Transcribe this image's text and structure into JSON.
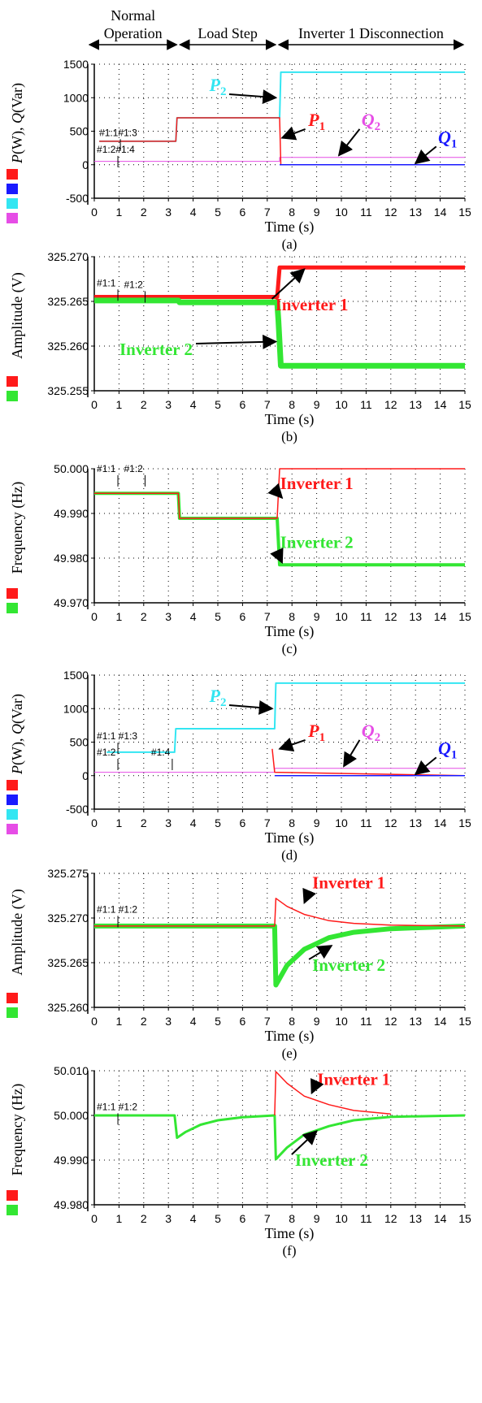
{
  "header": {
    "phases": [
      {
        "label": "Normal\nOperation",
        "t0": 0,
        "t1": 3.4
      },
      {
        "label": "Load Step",
        "t0": 3.4,
        "t1": 7.4
      },
      {
        "label": "Inverter 1 Disconnection",
        "t0": 7.4,
        "t1": 15
      }
    ]
  },
  "colors": {
    "red": "#ff1a1a",
    "blue": "#1a1aff",
    "cyan": "#33e6f2",
    "magenta": "#e64de6",
    "green": "#33e633",
    "annot_blue": "#1a1aff"
  },
  "chart_data": [
    {
      "id": "a",
      "caption": "(a)",
      "type": "line",
      "ylabel": "P(W), Q(Var)",
      "xlabel": "Time (s)",
      "xlim": [
        0,
        15
      ],
      "ylim": [
        -500,
        1500
      ],
      "xticks": [
        "0",
        "1",
        "2",
        "3",
        "4",
        "5",
        "6",
        "7",
        "8",
        "9",
        "10",
        "11",
        "12",
        "13",
        "14",
        "15"
      ],
      "yticks": [
        "1500",
        "1000",
        "500",
        "0",
        "-500"
      ],
      "legend_swatches": [
        "red",
        "blue",
        "cyan",
        "magenta"
      ],
      "markers": [
        {
          "text": "#1:1#1:3",
          "t": 0.2,
          "y": 430
        },
        {
          "text": "#1:2#1:4",
          "t": 0.1,
          "y": 180
        }
      ],
      "series": [
        {
          "color": "cyan",
          "points": [
            [
              0.2,
              350
            ],
            [
              3.3,
              350
            ],
            [
              3.35,
              700
            ],
            [
              7.5,
              700
            ],
            [
              7.55,
              1380
            ],
            [
              15,
              1380
            ]
          ],
          "width": 2
        },
        {
          "color": "magenta",
          "points": [
            [
              0,
              50
            ],
            [
              7.5,
              50
            ],
            [
              7.5,
              110
            ],
            [
              15,
              110
            ]
          ],
          "width": 1
        },
        {
          "color": "red",
          "points": [
            [
              0.2,
              350
            ],
            [
              3.3,
              350
            ],
            [
              3.35,
              700
            ],
            [
              7.5,
              700
            ],
            [
              7.55,
              0
            ],
            [
              15,
              0
            ]
          ],
          "width": 1.5
        },
        {
          "color": "blue",
          "points": [
            [
              7.5,
              0
            ],
            [
              15,
              0
            ]
          ],
          "width": 1.5
        }
      ],
      "annotations": [
        {
          "text": "P",
          "sub": "2",
          "color": "cyan",
          "tx": 5.0,
          "ty": 1100,
          "ax": 7.35,
          "ay": 1000
        },
        {
          "text": "P",
          "sub": "1",
          "color": "red",
          "tx": 9.0,
          "ty": 580,
          "ax": 7.6,
          "ay": 400
        },
        {
          "text": "Q",
          "sub": "2",
          "color": "magenta",
          "tx": 11.2,
          "ty": 580,
          "ax": 9.9,
          "ay": 140
        },
        {
          "text": "Q",
          "sub": "1",
          "color": "annot_blue",
          "tx": 14.3,
          "ty": 320,
          "ax": 13.0,
          "ay": 20
        }
      ]
    },
    {
      "id": "b",
      "caption": "(b)",
      "type": "line",
      "ylabel": "Amplitude (V)",
      "xlabel": "Time (s)",
      "xlim": [
        0,
        15
      ],
      "ylim": [
        325.255,
        325.27
      ],
      "xticks": [
        "0",
        "1",
        "2",
        "3",
        "4",
        "5",
        "6",
        "7",
        "8",
        "9",
        "10",
        "11",
        "12",
        "13",
        "14",
        "15"
      ],
      "yticks": [
        "325.270",
        "325.265",
        "325.260",
        "325.255"
      ],
      "legend_swatches": [
        "red",
        "green"
      ],
      "markers": [
        {
          "text": "#1:1",
          "t": 0.1,
          "y": 325.2667
        },
        {
          "text": "#1:2",
          "t": 1.2,
          "y": 325.2665
        }
      ],
      "series": [
        {
          "color": "red",
          "points": [
            [
              0,
              325.2655
            ],
            [
              7.4,
              325.2655
            ],
            [
              7.5,
              325.2688
            ],
            [
              15,
              325.2688
            ]
          ],
          "width": 5
        },
        {
          "color": "green",
          "points": [
            [
              0,
              325.2651
            ],
            [
              3.4,
              325.2651
            ],
            [
              3.45,
              325.2649
            ],
            [
              7.4,
              325.2649
            ],
            [
              7.45,
              325.2629
            ],
            [
              7.55,
              325.2578
            ],
            [
              15,
              325.2578
            ]
          ],
          "width": 7
        }
      ],
      "annotations": [
        {
          "text": "Inverter 1",
          "color": "red",
          "tx": 8.8,
          "ty": 325.264,
          "ax": 8.5,
          "ay": 325.2686
        },
        {
          "text": "Inverter 2",
          "color": "green",
          "tx": 2.5,
          "ty": 325.259,
          "ax": 7.35,
          "ay": 325.2605
        }
      ]
    },
    {
      "id": "c",
      "caption": "(c)",
      "type": "line",
      "ylabel": "Frequency (Hz)",
      "xlabel": "Time (s)",
      "xlim": [
        0,
        15
      ],
      "ylim": [
        49.97,
        50.0
      ],
      "xticks": [
        "0",
        "1",
        "2",
        "3",
        "4",
        "5",
        "6",
        "7",
        "8",
        "9",
        "10",
        "11",
        "12",
        "13",
        "14",
        "15"
      ],
      "yticks": [
        "50.000",
        "49.990",
        "49.980",
        "49.970"
      ],
      "legend_swatches": [
        "red",
        "green"
      ],
      "markers": [
        {
          "text": "#1:1",
          "t": 0.1,
          "y": 49.9993
        },
        {
          "text": "#1:2",
          "t": 1.2,
          "y": 49.9993
        }
      ],
      "series": [
        {
          "color": "green",
          "points": [
            [
              0,
              49.9945
            ],
            [
              3.4,
              49.9945
            ],
            [
              3.45,
              49.9889
            ],
            [
              7.4,
              49.9889
            ],
            [
              7.5,
              49.9785
            ],
            [
              15,
              49.9785
            ]
          ],
          "width": 4
        },
        {
          "color": "red",
          "points": [
            [
              0,
              49.9945
            ],
            [
              3.4,
              49.9945
            ],
            [
              3.45,
              49.9889
            ],
            [
              7.4,
              49.9889
            ],
            [
              7.5,
              50.0
            ],
            [
              15,
              50.0
            ]
          ],
          "width": 1.5
        }
      ],
      "annotations": [
        {
          "text": "Inverter 1",
          "color": "red",
          "tx": 9.0,
          "ty": 49.9955,
          "ax": 7.6,
          "ay": 49.9935
        },
        {
          "text": "Inverter 2",
          "color": "green",
          "tx": 9.0,
          "ty": 49.9823,
          "ax": 7.6,
          "ay": 49.979
        }
      ]
    },
    {
      "id": "d",
      "caption": "(d)",
      "type": "line",
      "ylabel": "P(W), Q(Var)",
      "xlabel": "Time (s)",
      "xlim": [
        0,
        15
      ],
      "ylim": [
        -500,
        1500
      ],
      "xticks": [
        "0",
        "1",
        "2",
        "3",
        "4",
        "5",
        "6",
        "7",
        "8",
        "9",
        "10",
        "11",
        "12",
        "13",
        "14",
        "15"
      ],
      "yticks": [
        "1500",
        "1000",
        "500",
        "0",
        "-500"
      ],
      "legend_swatches": [
        "red",
        "blue",
        "cyan",
        "magenta"
      ],
      "markers": [
        {
          "text": "#1:1 #1:3",
          "t": 0.1,
          "y": 540
        },
        {
          "text": "#1:2",
          "t": 0.1,
          "y": 300
        },
        {
          "text": "#1:4",
          "t": 2.3,
          "y": 300
        }
      ],
      "series": [
        {
          "color": "cyan",
          "points": [
            [
              0.5,
              350
            ],
            [
              2.2,
              350
            ],
            [
              2.2,
              350
            ],
            [
              3.25,
              350
            ],
            [
              3.3,
              700
            ],
            [
              7.3,
              700
            ],
            [
              7.35,
              1380
            ],
            [
              15,
              1380
            ]
          ],
          "width": 2
        },
        {
          "color": "magenta",
          "points": [
            [
              0,
              50
            ],
            [
              7.3,
              50
            ],
            [
              7.3,
              110
            ],
            [
              15,
              110
            ]
          ],
          "width": 1
        },
        {
          "color": "red",
          "points": [
            [
              7.2,
              400
            ],
            [
              7.3,
              50
            ],
            [
              15,
              0
            ]
          ],
          "width": 1.5
        },
        {
          "color": "blue",
          "points": [
            [
              7.3,
              0
            ],
            [
              15,
              0
            ]
          ],
          "width": 1.5
        }
      ],
      "annotations": [
        {
          "text": "P",
          "sub": "2",
          "color": "cyan",
          "tx": 5.0,
          "ty": 1100,
          "ax": 7.2,
          "ay": 1000
        },
        {
          "text": "P",
          "sub": "1",
          "color": "red",
          "tx": 9.0,
          "ty": 580,
          "ax": 7.5,
          "ay": 400
        },
        {
          "text": "Q",
          "sub": "2",
          "color": "magenta",
          "tx": 11.2,
          "ty": 580,
          "ax": 10.1,
          "ay": 140
        },
        {
          "text": "Q",
          "sub": "1",
          "color": "annot_blue",
          "tx": 14.3,
          "ty": 320,
          "ax": 13.0,
          "ay": 20
        }
      ]
    },
    {
      "id": "e",
      "caption": "(e)",
      "type": "line",
      "ylabel": "Amplitude (V)",
      "xlabel": "Time (s)",
      "xlim": [
        0,
        15
      ],
      "ylim": [
        325.26,
        325.275
      ],
      "xticks": [
        "0",
        "1",
        "2",
        "3",
        "4",
        "5",
        "6",
        "7",
        "8",
        "9",
        "10",
        "11",
        "12",
        "13",
        "14",
        "15"
      ],
      "yticks": [
        "325.275",
        "325.270",
        "325.265",
        "325.260"
      ],
      "legend_swatches": [
        "red",
        "green"
      ],
      "markers": [
        {
          "text": "#1:1 #1:2",
          "t": 0.1,
          "y": 325.2706
        }
      ],
      "series": [
        {
          "color": "green",
          "points": [
            [
              0,
              325.2691
            ],
            [
              7.3,
              325.2691
            ],
            [
              7.35,
              325.2625
            ],
            [
              7.8,
              325.2647
            ],
            [
              8.5,
              325.2665
            ],
            [
              9.5,
              325.2678
            ],
            [
              10.5,
              325.2684
            ],
            [
              12,
              325.2688
            ],
            [
              15,
              325.2691
            ]
          ],
          "width": 6
        },
        {
          "color": "red",
          "points": [
            [
              0,
              325.2691
            ],
            [
              7.3,
              325.2691
            ],
            [
              7.35,
              325.2722
            ],
            [
              7.8,
              325.2713
            ],
            [
              8.5,
              325.2704
            ],
            [
              9.5,
              325.2697
            ],
            [
              10.5,
              325.2694
            ],
            [
              12,
              325.2692
            ],
            [
              15,
              325.2691
            ]
          ],
          "width": 1.5
        }
      ],
      "annotations": [
        {
          "text": "Inverter 1",
          "color": "red",
          "tx": 10.3,
          "ty": 325.2733,
          "ax": 8.5,
          "ay": 325.2717
        },
        {
          "text": "Inverter 2",
          "color": "green",
          "tx": 10.3,
          "ty": 325.2641,
          "ax": 9.6,
          "ay": 325.2669
        }
      ]
    },
    {
      "id": "f",
      "caption": "(f)",
      "type": "line",
      "ylabel": "Frequency (Hz)",
      "xlabel": "Time (s)",
      "xlim": [
        0,
        15
      ],
      "ylim": [
        49.98,
        50.01
      ],
      "xticks": [
        "0",
        "1",
        "2",
        "3",
        "4",
        "5",
        "6",
        "7",
        "8",
        "9",
        "10",
        "11",
        "12",
        "13",
        "14",
        "15"
      ],
      "yticks": [
        "50.010",
        "50.000",
        "49.990",
        "49.980"
      ],
      "legend_swatches": [
        "red",
        "green"
      ],
      "markers": [
        {
          "text": "#1:1 #1:2",
          "t": 0.1,
          "y": 50.0012
        }
      ],
      "series": [
        {
          "color": "green",
          "points": [
            [
              0,
              50.0
            ],
            [
              3.25,
              50.0
            ],
            [
              3.35,
              49.995
            ],
            [
              3.7,
              49.9963
            ],
            [
              4.3,
              49.9979
            ],
            [
              5.0,
              49.9989
            ],
            [
              6.0,
              49.9996
            ],
            [
              7.3,
              50.0
            ],
            [
              7.35,
              49.9902
            ],
            [
              7.8,
              49.9928
            ],
            [
              8.5,
              49.9957
            ],
            [
              9.5,
              49.9976
            ],
            [
              10.5,
              49.9989
            ],
            [
              12,
              49.9997
            ],
            [
              15,
              50.0
            ]
          ],
          "width": 3
        },
        {
          "color": "red",
          "points": [
            [
              7.3,
              50.0
            ],
            [
              7.35,
              50.0098
            ],
            [
              7.8,
              50.0072
            ],
            [
              8.5,
              50.0043
            ],
            [
              9.5,
              50.0024
            ],
            [
              10.5,
              50.0011
            ],
            [
              12,
              50.0003
            ]
          ],
          "width": 1.5
        }
      ],
      "annotations": [
        {
          "text": "Inverter 1",
          "color": "red",
          "tx": 10.5,
          "ty": 50.0068,
          "ax": 8.8,
          "ay": 50.005
        },
        {
          "text": "Inverter 2",
          "color": "green",
          "tx": 9.6,
          "ty": 49.9887,
          "ax": 9.0,
          "ay": 49.9965
        }
      ]
    }
  ]
}
